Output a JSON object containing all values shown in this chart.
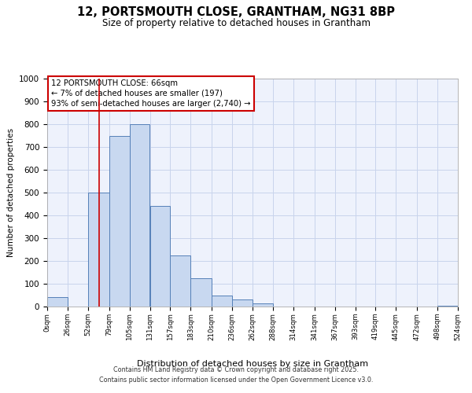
{
  "title": "12, PORTSMOUTH CLOSE, GRANTHAM, NG31 8BP",
  "subtitle": "Size of property relative to detached houses in Grantham",
  "xlabel": "Distribution of detached houses by size in Grantham",
  "ylabel": "Number of detached properties",
  "bin_edges": [
    0,
    26,
    52,
    79,
    105,
    131,
    157,
    183,
    210,
    236,
    262,
    288,
    314,
    341,
    367,
    393,
    419,
    445,
    472,
    498,
    524
  ],
  "bar_heights": [
    40,
    0,
    500,
    750,
    800,
    440,
    225,
    125,
    50,
    30,
    15,
    0,
    0,
    0,
    0,
    0,
    0,
    0,
    0,
    5
  ],
  "bar_facecolor": "#c8d8f0",
  "bar_edgecolor": "#5580b8",
  "bar_linewidth": 0.7,
  "vline_x": 66,
  "vline_color": "#cc0000",
  "vline_linewidth": 1.2,
  "ylim": [
    0,
    1000
  ],
  "yticks": [
    0,
    100,
    200,
    300,
    400,
    500,
    600,
    700,
    800,
    900,
    1000
  ],
  "annotation_title": "12 PORTSMOUTH CLOSE: 66sqm",
  "annotation_line1": "← 7% of detached houses are smaller (197)",
  "annotation_line2": "93% of semi-detached houses are larger (2,740) →",
  "annotation_box_color": "#cc0000",
  "grid_color": "#c8d4ec",
  "bg_color": "#eef2fc",
  "footnote1": "Contains HM Land Registry data © Crown copyright and database right 2025.",
  "footnote2": "Contains public sector information licensed under the Open Government Licence v3.0.",
  "tick_labels": [
    "0sqm",
    "26sqm",
    "52sqm",
    "79sqm",
    "105sqm",
    "131sqm",
    "157sqm",
    "183sqm",
    "210sqm",
    "236sqm",
    "262sqm",
    "288sqm",
    "314sqm",
    "341sqm",
    "367sqm",
    "393sqm",
    "419sqm",
    "445sqm",
    "472sqm",
    "498sqm",
    "524sqm"
  ]
}
